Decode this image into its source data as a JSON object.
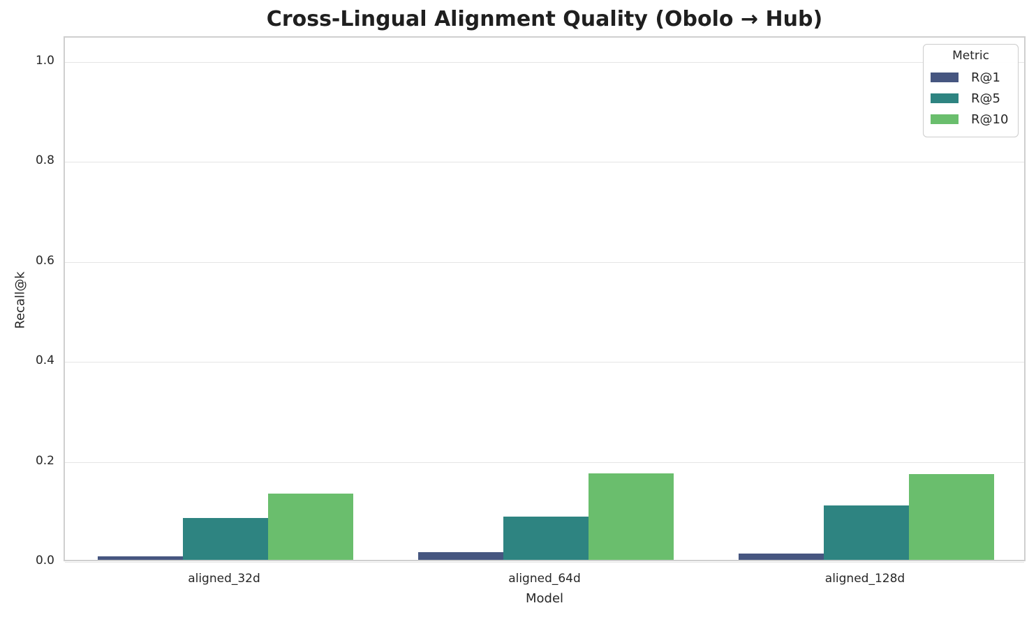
{
  "title": "Cross-Lingual Alignment Quality (Obolo → Hub)",
  "chart_data": {
    "type": "bar",
    "title": "Cross-Lingual Alignment Quality (Obolo → Hub)",
    "xlabel": "Model",
    "ylabel": "Recall@k",
    "categories": [
      "aligned_32d",
      "aligned_64d",
      "aligned_128d"
    ],
    "series": [
      {
        "name": "R@1",
        "color": "#465680",
        "values": [
          0.007,
          0.015,
          0.012
        ]
      },
      {
        "name": "R@5",
        "color": "#2e8481",
        "values": [
          0.084,
          0.087,
          0.109
        ]
      },
      {
        "name": "R@10",
        "color": "#6abe6d",
        "values": [
          0.132,
          0.173,
          0.171
        ]
      }
    ],
    "ylim": [
      0,
      1.05
    ],
    "yticks": [
      "0.0",
      "0.2",
      "0.4",
      "0.6",
      "0.8",
      "1.0"
    ],
    "grid": true,
    "legend": {
      "title": "Metric",
      "position": "upper right"
    }
  },
  "colors": {
    "grid": "#e5e5e5",
    "spine": "#cfcfcf",
    "text": "#262626"
  }
}
